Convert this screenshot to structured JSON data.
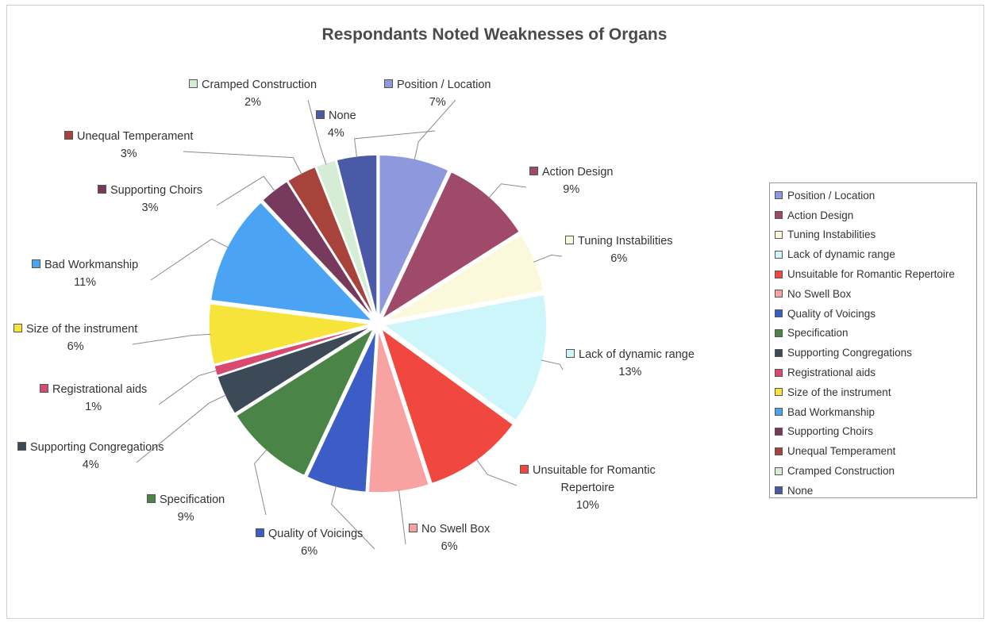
{
  "chart_data": {
    "type": "pie",
    "exploded": true,
    "title": "Respondants Noted Weaknesses of Organs",
    "legend_position": "right",
    "slices": [
      {
        "label": "Position / Location",
        "value": 7,
        "display": "7%",
        "color": "#8e98dc"
      },
      {
        "label": "Action Design",
        "value": 9,
        "display": "9%",
        "color": "#9f4a68"
      },
      {
        "label": "Tuning Instabilities",
        "value": 6,
        "display": "6%",
        "color": "#fcf8dc"
      },
      {
        "label": "Lack of dynamic range",
        "value": 13,
        "display": "13%",
        "color": "#cdf6fa"
      },
      {
        "label": "Unsuitable for Romantic Repertoire",
        "value": 10,
        "display": "10%",
        "label_display_line1": "Unsuitable for Romantic",
        "label_display_line2": "Repertoire",
        "color": "#f0473f"
      },
      {
        "label": "No Swell Box",
        "value": 6,
        "display": "6%",
        "color": "#f8a2a2"
      },
      {
        "label": "Quality of Voicings",
        "value": 6,
        "display": "6%",
        "color": "#3c5cc6"
      },
      {
        "label": "Specification",
        "value": 9,
        "display": "9%",
        "color": "#4a8447"
      },
      {
        "label": "Supporting Congregations",
        "value": 4,
        "display": "4%",
        "color": "#3c4a57"
      },
      {
        "label": "Registrational aids",
        "value": 1,
        "display": "1%",
        "color": "#d9486e"
      },
      {
        "label": "Size of the instrument",
        "value": 6,
        "display": "6%",
        "color": "#f7e43a"
      },
      {
        "label": "Bad Workmanship",
        "value": 11,
        "display": "11%",
        "color": "#4aa4f3"
      },
      {
        "label": "Supporting Choirs",
        "value": 3,
        "display": "3%",
        "color": "#773a5c"
      },
      {
        "label": "Unequal Temperament",
        "value": 3,
        "display": "3%",
        "color": "#a8433c"
      },
      {
        "label": "Cramped Construction",
        "value": 2,
        "display": "2%",
        "color": "#d5ecd5"
      },
      {
        "label": "None",
        "value": 4,
        "display": "4%",
        "color": "#4a5aa7"
      }
    ]
  }
}
